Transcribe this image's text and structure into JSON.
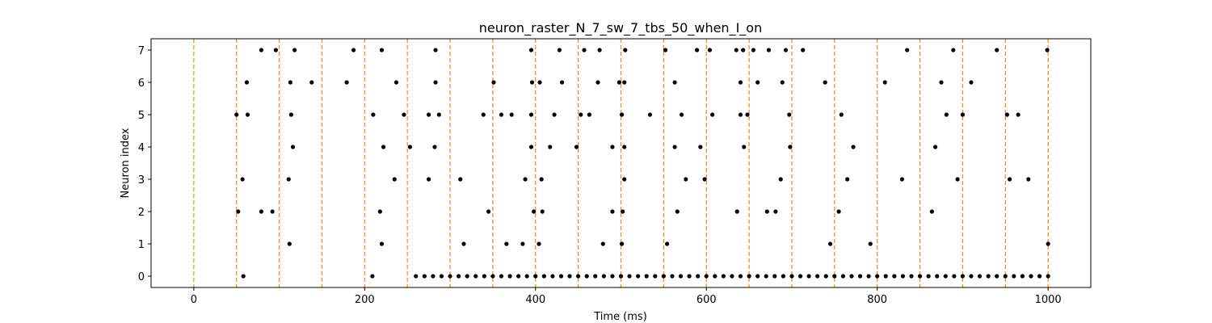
{
  "chart_data": {
    "type": "scatter",
    "title": "neuron_raster_N_7_sw_7_tbs_50_when_I_on",
    "xlabel": "Time (ms)",
    "ylabel": "Neuron index",
    "xlim": [
      -50,
      1050
    ],
    "ylim": [
      -0.35,
      7.35
    ],
    "x_ticks": [
      0,
      200,
      400,
      600,
      800,
      1000
    ],
    "y_ticks": [
      0,
      1,
      2,
      3,
      4,
      5,
      6,
      7
    ],
    "grid": false,
    "marker_color": "#000000",
    "vline_color": "#ff7f0e",
    "vlines": [
      0,
      50,
      100,
      150,
      200,
      250,
      300,
      350,
      400,
      450,
      500,
      550,
      600,
      650,
      700,
      750,
      800,
      850,
      900,
      950,
      1000
    ],
    "spikes": {
      "0": [
        58,
        209,
        260,
        270,
        280,
        290,
        300,
        310,
        320,
        330,
        340,
        350,
        360,
        370,
        380,
        390,
        400,
        410,
        420,
        430,
        440,
        450,
        460,
        470,
        480,
        490,
        500,
        510,
        520,
        530,
        540,
        550,
        560,
        570,
        580,
        590,
        600,
        610,
        620,
        630,
        640,
        650,
        660,
        670,
        680,
        690,
        700,
        710,
        720,
        730,
        740,
        750,
        760,
        770,
        780,
        790,
        800,
        810,
        820,
        830,
        840,
        850,
        860,
        870,
        880,
        890,
        900,
        910,
        920,
        930,
        940,
        950,
        960,
        970,
        980,
        990,
        1000
      ],
      "1": [
        112,
        220,
        316,
        366,
        385,
        404,
        479,
        501,
        554,
        745,
        792,
        1000
      ],
      "2": [
        52,
        79,
        92,
        218,
        345,
        398,
        408,
        490,
        502,
        566,
        636,
        671,
        681,
        755,
        864
      ],
      "3": [
        57,
        111,
        235,
        275,
        312,
        388,
        407,
        504,
        576,
        598,
        687,
        765,
        829,
        894,
        955,
        977
      ],
      "4": [
        116,
        222,
        253,
        282,
        395,
        417,
        448,
        490,
        504,
        563,
        593,
        644,
        698,
        772,
        868
      ],
      "5": [
        50,
        63,
        114,
        210,
        246,
        275,
        287,
        339,
        360,
        372,
        395,
        422,
        453,
        463,
        501,
        534,
        571,
        607,
        640,
        648,
        697,
        758,
        881,
        900,
        952,
        965
      ],
      "6": [
        62,
        113,
        138,
        179,
        237,
        283,
        351,
        396,
        405,
        431,
        473,
        498,
        504,
        563,
        640,
        660,
        689,
        739,
        809,
        875,
        910
      ],
      "7": [
        79,
        96,
        118,
        187,
        220,
        283,
        395,
        428,
        457,
        475,
        505,
        552,
        589,
        604,
        635,
        643,
        655,
        673,
        693,
        713,
        835,
        889,
        940,
        999
      ]
    }
  }
}
